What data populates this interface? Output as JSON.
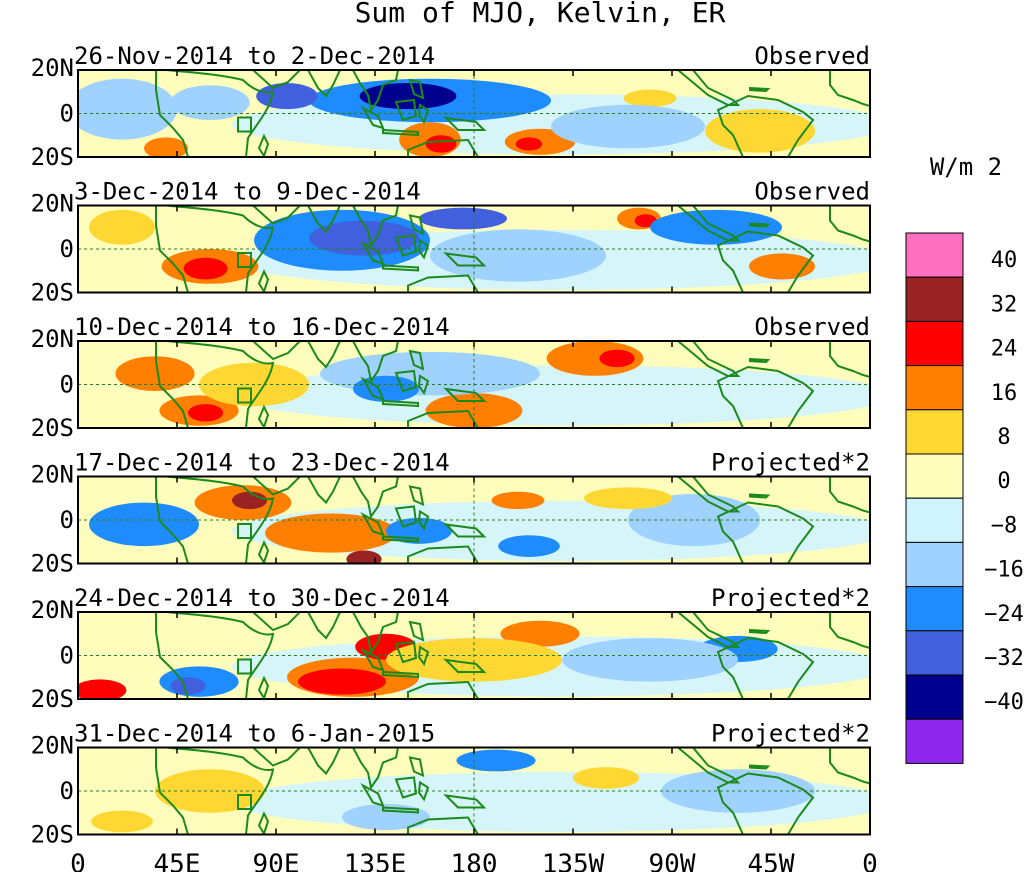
{
  "title": "Sum of MJO, Kelvin, ER",
  "panels": [
    {
      "period": "26-Nov-2014 to 2-Dec-2014",
      "status": "Observed"
    },
    {
      "period": "3-Dec-2014 to 9-Dec-2014",
      "status": "Observed"
    },
    {
      "period": "10-Dec-2014 to 16-Dec-2014",
      "status": "Observed"
    },
    {
      "period": "17-Dec-2014 to 23-Dec-2014",
      "status": "Projected*2"
    },
    {
      "period": "24-Dec-2014 to 30-Dec-2014",
      "status": "Projected*2"
    },
    {
      "period": "31-Dec-2014 to 6-Jan-2015",
      "status": "Projected*2"
    }
  ],
  "lat_labels": [
    "20N",
    "0",
    "20S"
  ],
  "lon_labels": [
    "0",
    "45E",
    "90E",
    "135E",
    "180",
    "135W",
    "90W",
    "45W",
    "0"
  ],
  "colorbar": {
    "units": "W/m 2",
    "labels": [
      "40",
      "32",
      "24",
      "16",
      "8",
      "0",
      "−8",
      "−16",
      "−24",
      "−32",
      "−40"
    ],
    "colors": [
      "#ff6fc0",
      "#9b2222",
      "#ff0000",
      "#ff7f00",
      "#ffd733",
      "#fffdbc",
      "#d0f4ff",
      "#a0d2ff",
      "#1e8cff",
      "#4060dd",
      "#00008f",
      "#8f28ef"
    ]
  },
  "map_colors": {
    "background": "#fffdbc",
    "coast": "#1b8a1b",
    "grid": "#2a7a2a"
  },
  "anomalies": [
    [
      {
        "lon": 160,
        "lat": 6,
        "rx": 55,
        "ry": 10,
        "level": -2
      },
      {
        "lon": 150,
        "lat": 8,
        "rx": 22,
        "ry": 6,
        "level": -4
      },
      {
        "lon": 95,
        "lat": 8,
        "rx": 14,
        "ry": 6,
        "level": -3
      },
      {
        "lon": 60,
        "lat": 5,
        "rx": 18,
        "ry": 8,
        "level": -1
      },
      {
        "lon": 20,
        "lat": 2,
        "rx": 25,
        "ry": 14,
        "level": -1
      },
      {
        "lon": 160,
        "lat": -12,
        "rx": 14,
        "ry": 8,
        "level": 2
      },
      {
        "lon": 165,
        "lat": -14,
        "rx": 7,
        "ry": 4,
        "level": 3
      },
      {
        "lon": 210,
        "lat": -13,
        "rx": 16,
        "ry": 6,
        "level": 2
      },
      {
        "lon": 205,
        "lat": -14,
        "rx": 6,
        "ry": 3,
        "level": 3
      },
      {
        "lon": 260,
        "lat": 7,
        "rx": 12,
        "ry": 4,
        "level": 1
      },
      {
        "lon": 310,
        "lat": -8,
        "rx": 25,
        "ry": 10,
        "level": 1
      },
      {
        "lon": 250,
        "lat": -6,
        "rx": 35,
        "ry": 10,
        "level": -1
      },
      {
        "lon": 40,
        "lat": -16,
        "rx": 10,
        "ry": 5,
        "level": 2
      }
    ],
    [
      {
        "lon": 120,
        "lat": 4,
        "rx": 40,
        "ry": 14,
        "level": -2
      },
      {
        "lon": 130,
        "lat": 5,
        "rx": 25,
        "ry": 8,
        "level": -3
      },
      {
        "lon": 175,
        "lat": 14,
        "rx": 20,
        "ry": 5,
        "level": -3
      },
      {
        "lon": 255,
        "lat": 14,
        "rx": 10,
        "ry": 5,
        "level": 2
      },
      {
        "lon": 258,
        "lat": 13,
        "rx": 5,
        "ry": 3,
        "level": 3
      },
      {
        "lon": 60,
        "lat": -8,
        "rx": 22,
        "ry": 8,
        "level": 2
      },
      {
        "lon": 58,
        "lat": -9,
        "rx": 10,
        "ry": 5,
        "level": 3
      },
      {
        "lon": 290,
        "lat": 10,
        "rx": 30,
        "ry": 8,
        "level": -2
      },
      {
        "lon": 320,
        "lat": -8,
        "rx": 15,
        "ry": 6,
        "level": 2
      },
      {
        "lon": 200,
        "lat": -3,
        "rx": 40,
        "ry": 12,
        "level": -1
      },
      {
        "lon": 20,
        "lat": 10,
        "rx": 15,
        "ry": 8,
        "level": 1
      }
    ],
    [
      {
        "lon": 55,
        "lat": -12,
        "rx": 18,
        "ry": 7,
        "level": 2
      },
      {
        "lon": 58,
        "lat": -13,
        "rx": 8,
        "ry": 4,
        "level": 3
      },
      {
        "lon": 180,
        "lat": -12,
        "rx": 22,
        "ry": 8,
        "level": 2
      },
      {
        "lon": 235,
        "lat": 12,
        "rx": 22,
        "ry": 8,
        "level": 2
      },
      {
        "lon": 245,
        "lat": 12,
        "rx": 8,
        "ry": 4,
        "level": 3
      },
      {
        "lon": 35,
        "lat": 5,
        "rx": 18,
        "ry": 8,
        "level": 2
      },
      {
        "lon": 160,
        "lat": 5,
        "rx": 50,
        "ry": 10,
        "level": -1
      },
      {
        "lon": 140,
        "lat": -2,
        "rx": 15,
        "ry": 6,
        "level": -2
      },
      {
        "lon": 80,
        "lat": 0,
        "rx": 25,
        "ry": 10,
        "level": 1
      }
    ],
    [
      {
        "lon": 75,
        "lat": 8,
        "rx": 22,
        "ry": 8,
        "level": 2
      },
      {
        "lon": 78,
        "lat": 9,
        "rx": 8,
        "ry": 4,
        "level": 4
      },
      {
        "lon": 115,
        "lat": -6,
        "rx": 30,
        "ry": 9,
        "level": 2
      },
      {
        "lon": 130,
        "lat": -18,
        "rx": 8,
        "ry": 4,
        "level": 4
      },
      {
        "lon": 200,
        "lat": 9,
        "rx": 12,
        "ry": 4,
        "level": 2
      },
      {
        "lon": 30,
        "lat": -2,
        "rx": 25,
        "ry": 10,
        "level": -2
      },
      {
        "lon": 205,
        "lat": -12,
        "rx": 14,
        "ry": 5,
        "level": -2
      },
      {
        "lon": 155,
        "lat": -5,
        "rx": 15,
        "ry": 6,
        "level": -2
      },
      {
        "lon": 280,
        "lat": 0,
        "rx": 30,
        "ry": 12,
        "level": -1
      },
      {
        "lon": 250,
        "lat": 10,
        "rx": 20,
        "ry": 5,
        "level": 1
      }
    ],
    [
      {
        "lon": 125,
        "lat": -10,
        "rx": 30,
        "ry": 9,
        "level": 2
      },
      {
        "lon": 120,
        "lat": -12,
        "rx": 20,
        "ry": 6,
        "level": 3
      },
      {
        "lon": 140,
        "lat": 4,
        "rx": 14,
        "ry": 6,
        "level": 3
      },
      {
        "lon": 210,
        "lat": 10,
        "rx": 18,
        "ry": 6,
        "level": 2
      },
      {
        "lon": 55,
        "lat": -12,
        "rx": 18,
        "ry": 7,
        "level": -2
      },
      {
        "lon": 50,
        "lat": -14,
        "rx": 8,
        "ry": 4,
        "level": -3
      },
      {
        "lon": 10,
        "lat": -16,
        "rx": 12,
        "ry": 5,
        "level": 3
      },
      {
        "lon": 300,
        "lat": 3,
        "rx": 18,
        "ry": 6,
        "level": -2
      },
      {
        "lon": 260,
        "lat": -2,
        "rx": 40,
        "ry": 10,
        "level": -1
      },
      {
        "lon": 180,
        "lat": -2,
        "rx": 40,
        "ry": 10,
        "level": 1
      }
    ],
    [
      {
        "lon": 190,
        "lat": 14,
        "rx": 18,
        "ry": 5,
        "level": -2
      },
      {
        "lon": 240,
        "lat": 6,
        "rx": 15,
        "ry": 5,
        "level": 1
      },
      {
        "lon": 140,
        "lat": -12,
        "rx": 20,
        "ry": 6,
        "level": -1
      },
      {
        "lon": 60,
        "lat": 0,
        "rx": 25,
        "ry": 10,
        "level": 1
      },
      {
        "lon": 300,
        "lat": 0,
        "rx": 35,
        "ry": 10,
        "level": -1
      },
      {
        "lon": 20,
        "lat": -14,
        "rx": 14,
        "ry": 5,
        "level": 1
      }
    ]
  ]
}
